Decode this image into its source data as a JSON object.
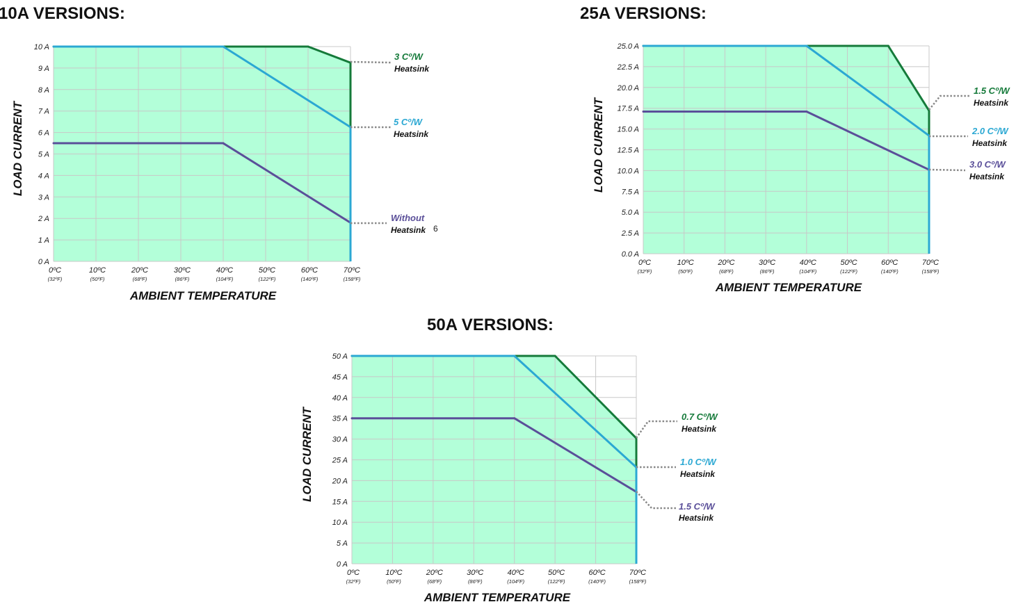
{
  "colors": {
    "fill": "#b3ffd9",
    "grid": "#c8c8c8",
    "green": "#157a3a",
    "cyan": "#2ba8d3",
    "purple": "#5a4f99",
    "leader": "#888888"
  },
  "chart_data": [
    {
      "type": "line",
      "title": "10A VERSIONS:",
      "ylabel": "LOAD CURRENT",
      "xlabel": "AMBIENT TEMPERATURE",
      "x": [
        0,
        10,
        20,
        30,
        40,
        50,
        60,
        70
      ],
      "x_tick_labels": [
        "0ºC",
        "10ºC",
        "20ºC",
        "30ºC",
        "40ºC",
        "50ºC",
        "60ºC",
        "70ºC"
      ],
      "x_tick_sublabels": [
        "(32ºF)",
        "(50ºF)",
        "(68ºF)",
        "(86ºF)",
        "(104ºF)",
        "(122ºF)",
        "(140ºF)",
        "(158ºF)"
      ],
      "y_ticks": [
        0,
        1,
        2,
        3,
        4,
        5,
        6,
        7,
        8,
        9,
        10
      ],
      "y_tick_labels": [
        "0 A",
        "1 A",
        "2 A",
        "3 A",
        "4 A",
        "5 A",
        "6 A",
        "7 A",
        "8 A",
        "9 A",
        "10 A"
      ],
      "xlim": [
        0,
        70
      ],
      "ylim": [
        0,
        10
      ],
      "grid": true,
      "series": [
        {
          "color_key": "green",
          "rating": "3 Cº/W",
          "sub": "Heatsink",
          "mark": "",
          "x": [
            0,
            40,
            60,
            70
          ],
          "y": [
            10,
            10,
            10,
            9.25
          ]
        },
        {
          "color_key": "cyan",
          "rating": "5 Cº/W",
          "sub": "Heatsink",
          "mark": "",
          "x": [
            0,
            40,
            70
          ],
          "y": [
            10,
            10,
            6.25
          ]
        },
        {
          "color_key": "purple",
          "rating": "Without",
          "sub": "Heatsink",
          "mark": "6",
          "x": [
            0,
            40,
            70
          ],
          "y": [
            5.5,
            5.5,
            1.8
          ]
        }
      ]
    },
    {
      "type": "line",
      "title": "25A VERSIONS:",
      "ylabel": "LOAD CURRENT",
      "xlabel": "AMBIENT TEMPERATURE",
      "x": [
        0,
        10,
        20,
        30,
        40,
        50,
        60,
        70
      ],
      "x_tick_labels": [
        "0ºC",
        "10ºC",
        "20ºC",
        "30ºC",
        "40ºC",
        "50ºC",
        "60ºC",
        "70ºC"
      ],
      "x_tick_sublabels": [
        "(32ºF)",
        "(50ºF)",
        "(68ºF)",
        "(86ºF)",
        "(104ºF)",
        "(122ºF)",
        "(140ºF)",
        "(158ºF)"
      ],
      "y_ticks": [
        0,
        2.5,
        5,
        7.5,
        10,
        12.5,
        15,
        17.5,
        20,
        22.5,
        25
      ],
      "y_tick_labels": [
        "0.0 A",
        "2.5 A",
        "5.0 A",
        "7.5 A",
        "10.0 A",
        "12.5 A",
        "15.0 A",
        "17.5 A",
        "20.0 A",
        "22.5 A",
        "25.0 A"
      ],
      "xlim": [
        0,
        70
      ],
      "ylim": [
        0,
        25
      ],
      "grid": true,
      "series": [
        {
          "color_key": "green",
          "rating": "1.5 Cº/W",
          "sub": "Heatsink",
          "mark": "",
          "x": [
            0,
            40,
            60,
            70
          ],
          "y": [
            25,
            25,
            25,
            17.2
          ]
        },
        {
          "color_key": "cyan",
          "rating": "2.0 Cº/W",
          "sub": "Heatsink",
          "mark": "",
          "x": [
            0,
            40,
            70
          ],
          "y": [
            25,
            25,
            14.2
          ]
        },
        {
          "color_key": "purple",
          "rating": "3.0 Cº/W",
          "sub": "Heatsink",
          "mark": "",
          "x": [
            0,
            40,
            70
          ],
          "y": [
            17.1,
            17.1,
            10.1
          ]
        }
      ]
    },
    {
      "type": "line",
      "title": "50A VERSIONS:",
      "ylabel": "LOAD CURRENT",
      "xlabel": "AMBIENT TEMPERATURE",
      "x": [
        0,
        10,
        20,
        30,
        40,
        50,
        60,
        70
      ],
      "x_tick_labels": [
        "0ºC",
        "10ºC",
        "20ºC",
        "30ºC",
        "40ºC",
        "50ºC",
        "60ºC",
        "70ºC"
      ],
      "x_tick_sublabels": [
        "(32ºF)",
        "(50ºF)",
        "(68ºF)",
        "(86ºF)",
        "(104ºF)",
        "(122ºF)",
        "(140ºF)",
        "(158ºF)"
      ],
      "y_ticks": [
        0,
        5,
        10,
        15,
        20,
        25,
        30,
        35,
        40,
        45,
        50
      ],
      "y_tick_labels": [
        "0 A",
        "5 A",
        "10 A",
        "15 A",
        "20 A",
        "25 A",
        "30 A",
        "35 A",
        "40 A",
        "45 A",
        "50 A"
      ],
      "xlim": [
        0,
        70
      ],
      "ylim": [
        0,
        50
      ],
      "grid": true,
      "series": [
        {
          "color_key": "green",
          "rating": "0.7 Cº/W",
          "sub": "Heatsink",
          "mark": "",
          "x": [
            0,
            40,
            50,
            70
          ],
          "y": [
            50,
            50,
            50,
            30.2
          ]
        },
        {
          "color_key": "cyan",
          "rating": "1.0 Cº/W",
          "sub": "Heatsink",
          "mark": "",
          "x": [
            0,
            40,
            70
          ],
          "y": [
            50,
            50,
            23.2
          ]
        },
        {
          "color_key": "purple",
          "rating": "1.5 Cº/W",
          "sub": "Heatsink",
          "mark": "",
          "x": [
            0,
            40,
            70
          ],
          "y": [
            35,
            35,
            17.3
          ]
        }
      ]
    }
  ]
}
